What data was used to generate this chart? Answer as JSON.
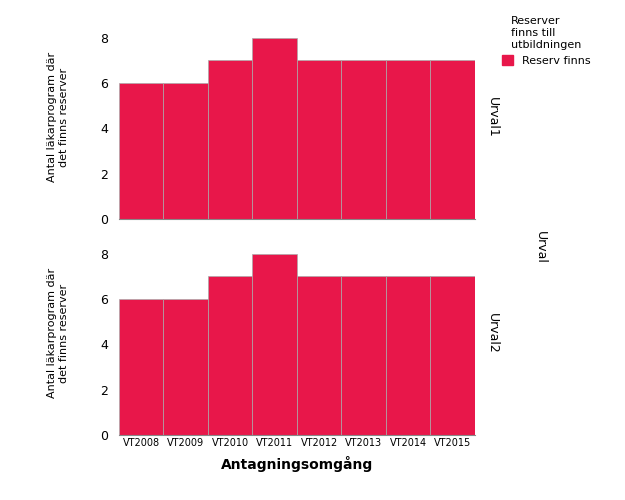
{
  "categories": [
    "VT2008",
    "VT2009",
    "VT2010",
    "VT2011",
    "VT2012",
    "VT2013",
    "VT2014",
    "VT2015"
  ],
  "urval1_values": [
    6,
    6,
    7,
    8,
    7,
    7,
    7,
    7
  ],
  "urval2_values": [
    6,
    6,
    7,
    8,
    7,
    7,
    7,
    7
  ],
  "bar_color": "#E8174A",
  "ylabel": "Antal läkarprogram där\ndet finns reserver",
  "xlabel": "Antagningsomgång",
  "urval1_label": "Urval1",
  "urval2_label": "Urval2",
  "urval_label": "Urval",
  "legend_title": "Reserver\nfinns till\nutbildningen",
  "legend_entry": "Reserv finns",
  "ylim": [
    0,
    9
  ],
  "yticks": [
    0,
    2,
    4,
    6,
    8
  ],
  "background_color": "#ffffff"
}
